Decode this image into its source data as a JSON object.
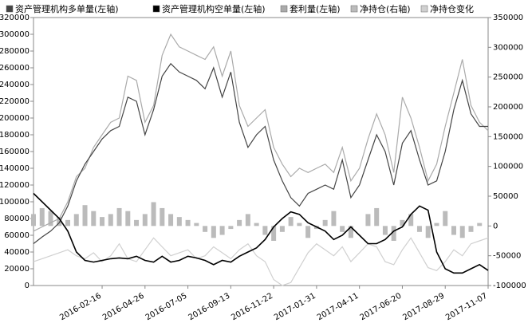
{
  "chart_data": {
    "type": "combo",
    "categories": [
      null,
      null,
      null,
      null,
      null,
      null,
      null,
      null,
      "2016-02-16",
      null,
      null,
      null,
      null,
      "2016-04-26",
      null,
      null,
      null,
      null,
      "2016-07-05",
      null,
      null,
      null,
      null,
      "2016-09-13",
      null,
      null,
      null,
      null,
      "2016-11-22",
      null,
      null,
      null,
      null,
      "2017-01-31",
      null,
      null,
      null,
      null,
      "2017-04-11",
      null,
      null,
      null,
      null,
      "2017-06-20",
      null,
      null,
      null,
      null,
      "2017-08-29",
      null,
      null,
      null,
      null,
      "2017-11-07"
    ],
    "series": [
      {
        "name": "资产管理机构多单量(左轴)",
        "kind": "line",
        "color": "#444444",
        "values": [
          50000,
          58000,
          65000,
          75000,
          95000,
          125000,
          145000,
          160000,
          175000,
          185000,
          190000,
          225000,
          220000,
          180000,
          210000,
          250000,
          265000,
          255000,
          250000,
          245000,
          235000,
          260000,
          225000,
          255000,
          195000,
          165000,
          180000,
          190000,
          150000,
          125000,
          105000,
          95000,
          110000,
          115000,
          120000,
          115000,
          150000,
          105000,
          120000,
          150000,
          180000,
          160000,
          120000,
          170000,
          185000,
          150000,
          120000,
          125000,
          160000,
          210000,
          245000,
          205000,
          190000,
          190000
        ]
      },
      {
        "name": "资产管理机构空单量(左轴)",
        "kind": "line",
        "color": "#000000",
        "values": [
          110000,
          100000,
          90000,
          80000,
          65000,
          40000,
          30000,
          28000,
          30000,
          32000,
          33000,
          32000,
          35000,
          30000,
          28000,
          35000,
          28000,
          30000,
          35000,
          33000,
          30000,
          25000,
          30000,
          28000,
          35000,
          40000,
          45000,
          55000,
          70000,
          80000,
          88000,
          85000,
          75000,
          70000,
          65000,
          55000,
          60000,
          70000,
          60000,
          50000,
          50000,
          55000,
          65000,
          70000,
          85000,
          95000,
          90000,
          40000,
          20000,
          15000,
          15000,
          20000,
          25000,
          18000
        ]
      },
      {
        "name": "套利量(左轴)",
        "kind": "line",
        "color": "#aaaaaa",
        "values": [
          65000,
          70000,
          75000,
          80000,
          100000,
          130000,
          140000,
          165000,
          180000,
          195000,
          200000,
          250000,
          245000,
          195000,
          215000,
          275000,
          300000,
          285000,
          280000,
          275000,
          270000,
          285000,
          250000,
          280000,
          215000,
          190000,
          200000,
          210000,
          165000,
          145000,
          130000,
          140000,
          135000,
          140000,
          145000,
          135000,
          165000,
          125000,
          140000,
          175000,
          205000,
          180000,
          135000,
          225000,
          200000,
          165000,
          125000,
          145000,
          190000,
          230000,
          270000,
          215000,
          195000,
          185000
        ]
      },
      {
        "name": "净持仓(右轴)",
        "kind": "bar",
        "axis": "y2",
        "color": "#bbbbbb",
        "values": [
          20000,
          30000,
          25000,
          15000,
          10000,
          20000,
          35000,
          25000,
          15000,
          20000,
          30000,
          25000,
          10000,
          20000,
          40000,
          30000,
          20000,
          15000,
          10000,
          5000,
          -10000,
          -20000,
          -15000,
          -5000,
          10000,
          20000,
          5000,
          -15000,
          -25000,
          -10000,
          15000,
          5000,
          -20000,
          -5000,
          10000,
          25000,
          -10000,
          -20000,
          0,
          20000,
          30000,
          -15000,
          -25000,
          10000,
          20000,
          -10000,
          -20000,
          5000,
          25000,
          -15000,
          -20000,
          -10000,
          5000,
          0
        ]
      },
      {
        "name": "净持仓变化",
        "kind": "line",
        "axis": "y2",
        "color": "#d0d0d0",
        "values": [
          -60000,
          -55000,
          -50000,
          -45000,
          -40000,
          -50000,
          -55000,
          -45000,
          -60000,
          -50000,
          -30000,
          -55000,
          -60000,
          -40000,
          -20000,
          -35000,
          -50000,
          -45000,
          -40000,
          -55000,
          -50000,
          -35000,
          -45000,
          -55000,
          -40000,
          -30000,
          -50000,
          -60000,
          -90000,
          -100000,
          -95000,
          -70000,
          -45000,
          -30000,
          -40000,
          -50000,
          -35000,
          -60000,
          -45000,
          -30000,
          -35000,
          -60000,
          -65000,
          -40000,
          -20000,
          -45000,
          -70000,
          -75000,
          -60000,
          -40000,
          -50000,
          -30000,
          -25000,
          -20000
        ]
      }
    ],
    "ylim": [
      0,
      320000
    ],
    "yticks": [
      0,
      20000,
      40000,
      60000,
      80000,
      100000,
      120000,
      140000,
      160000,
      180000,
      200000,
      220000,
      240000,
      260000,
      280000,
      300000,
      320000
    ],
    "y2lim": [
      -100000,
      350000
    ],
    "y2ticks": [
      -100000,
      -50000,
      0,
      50000,
      100000,
      150000,
      200000,
      250000,
      300000,
      350000
    ],
    "legend": "top"
  }
}
